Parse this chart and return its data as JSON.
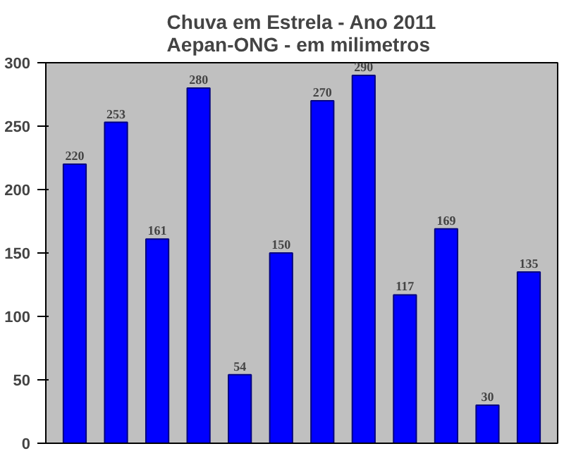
{
  "chart_data": {
    "type": "bar",
    "title": "Chuva em Estrela - Ano 2011\nAepan-ONG - em milimetros",
    "categories": [
      null,
      null,
      null,
      null,
      null,
      null,
      null,
      null,
      null,
      null,
      null,
      null
    ],
    "values": [
      220,
      253,
      161,
      280,
      54,
      150,
      270,
      290,
      117,
      169,
      30,
      135
    ],
    "color": "#0000ff",
    "ylim": [
      0,
      300
    ],
    "yticks": [
      0,
      50,
      100,
      150,
      200,
      250,
      300
    ],
    "data_labels": true
  }
}
